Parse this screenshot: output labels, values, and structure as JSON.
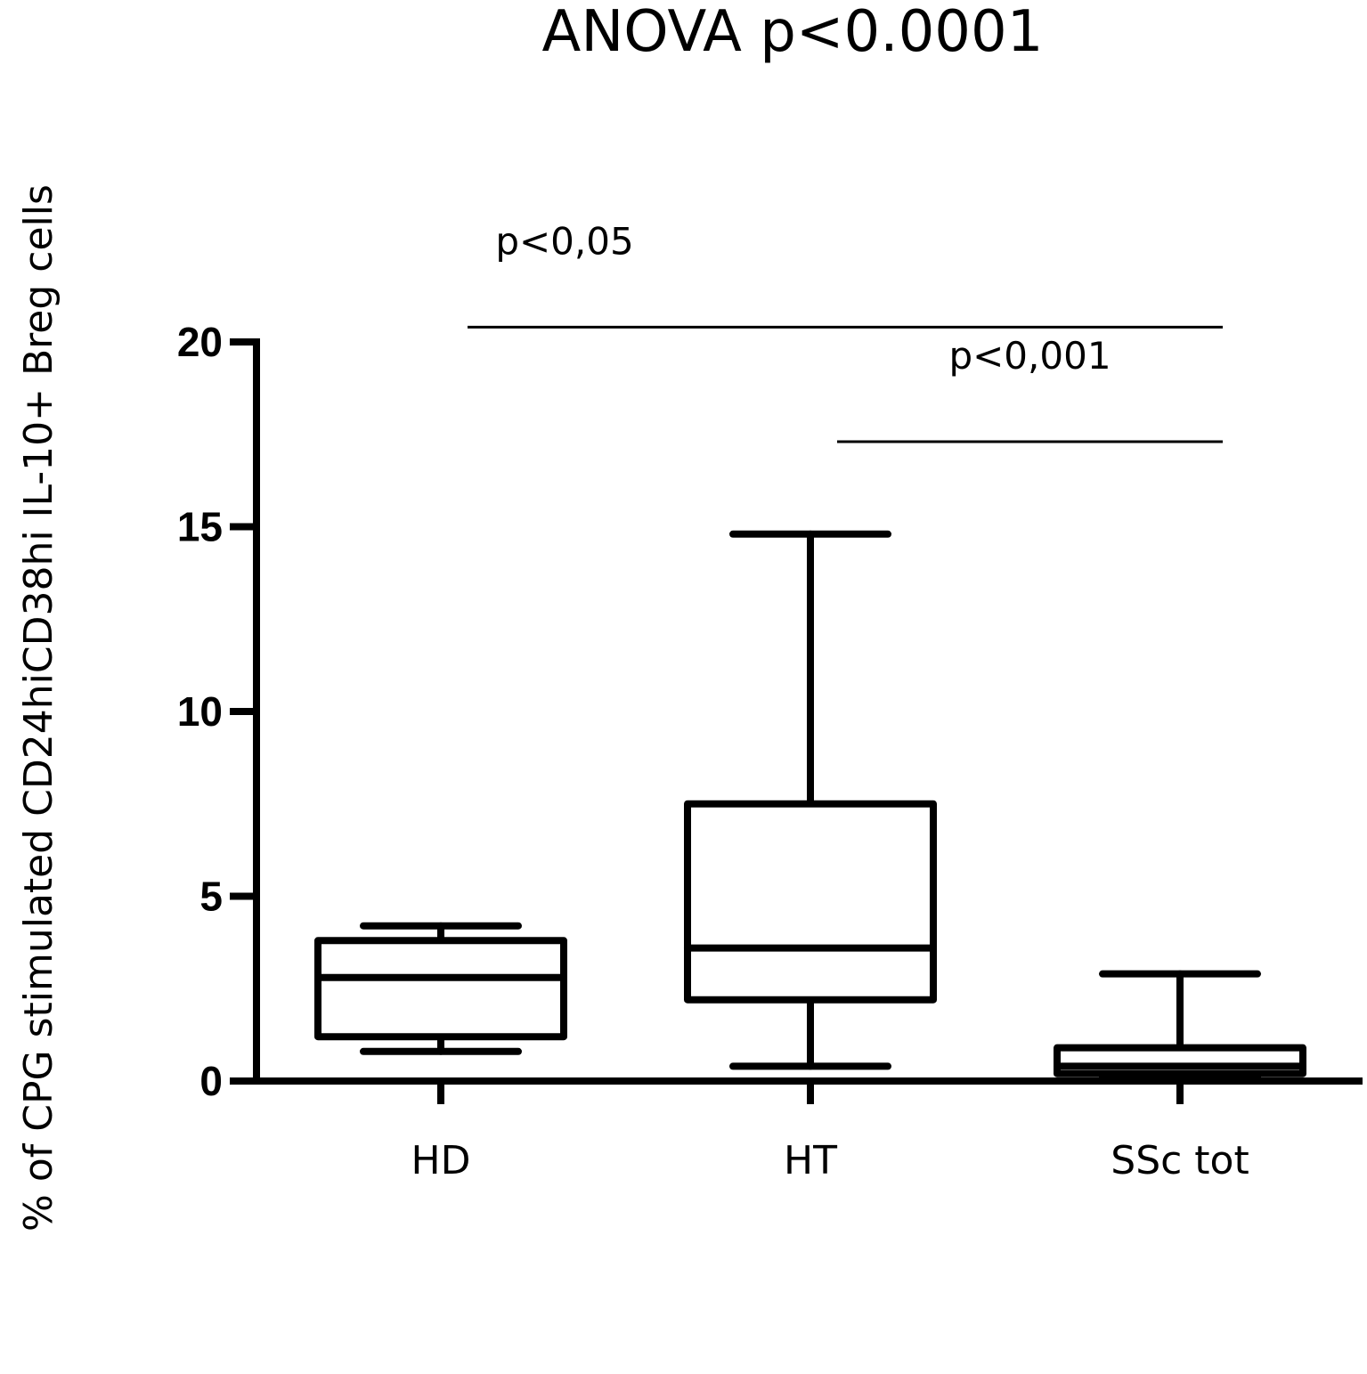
{
  "chart_data": {
    "type": "box",
    "title": "ANOVA p<0.0001",
    "ylabel": "% of CPG stimulated CD24hiCD38hi IL-10+ Breg cells",
    "xlabel": "",
    "ylim": [
      0,
      20
    ],
    "yticks": [
      0,
      5,
      10,
      15,
      20
    ],
    "categories": [
      "HD",
      "HT",
      "SSc tot"
    ],
    "boxes": [
      {
        "category": "HD",
        "min": 0.8,
        "q1": 1.2,
        "median": 2.8,
        "q3": 3.8,
        "max": 4.2
      },
      {
        "category": "HT",
        "min": 0.4,
        "q1": 2.2,
        "median": 3.6,
        "q3": 7.5,
        "max": 14.8
      },
      {
        "category": "SSc tot",
        "min": 0.1,
        "q1": 0.2,
        "median": 0.4,
        "q3": 0.9,
        "max": 2.9
      }
    ],
    "comparisons": [
      {
        "from": "HD",
        "to": "SSc tot",
        "label": "p<0,05",
        "y": 20.4
      },
      {
        "from": "HT",
        "to": "SSc tot",
        "label": "p<0,001",
        "y": 17.3
      }
    ]
  }
}
